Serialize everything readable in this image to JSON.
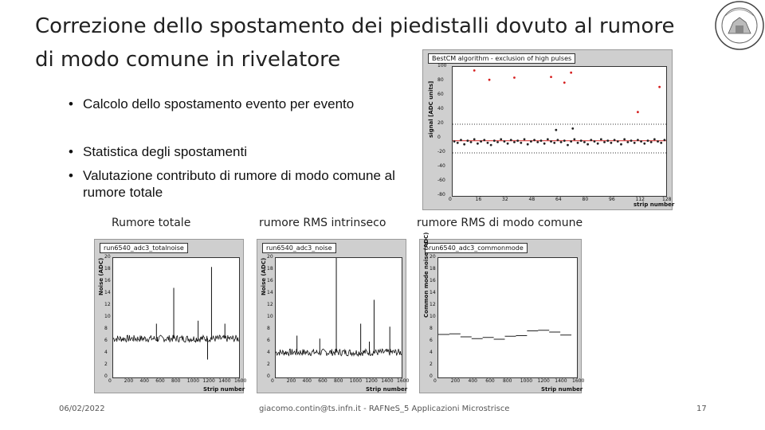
{
  "slide": {
    "title": "Correzione dello spostamento dei piedistalli dovuto al rumore di modo comune in rivelatore",
    "bullets": [
      "Calcolo dello spostamento evento per evento",
      "Statistica degli spostamenti",
      "Valutazione contributo di rumore di modo comune al rumore totale"
    ],
    "bullet_glyph": "•",
    "plot_labels": [
      "Rumore totale",
      "rumore RMS intrinseco",
      "rumore RMS di modo comune"
    ],
    "footer": {
      "date": "06/02/2022",
      "center": "giacomo.contin@ts.infn.it - RAFNeS_5 Applicazioni Microstrisce",
      "page": "17"
    },
    "logo_icon": "university-seal-icon"
  },
  "chart_data": [
    {
      "type": "scatter",
      "title": "BestCM algorithm - exclusion of high pulses",
      "xlabel": "strip number",
      "ylabel": "signal [ADC units]",
      "xlim": [
        0,
        128
      ],
      "ylim": [
        -80,
        100
      ],
      "xticks": [
        0,
        16,
        32,
        48,
        64,
        80,
        96,
        112,
        128
      ],
      "yticks": [
        -80,
        -60,
        -40,
        -20,
        0,
        20,
        40,
        60,
        80,
        100
      ],
      "grid": false,
      "thresholds": [
        20,
        -20
      ],
      "series": [
        {
          "color": "#222222",
          "x": [
            1,
            3,
            5,
            7,
            9,
            11,
            13,
            15,
            17,
            19,
            21,
            23,
            25,
            27,
            29,
            31,
            33,
            35,
            37,
            39,
            41,
            43,
            45,
            47,
            49,
            51,
            53,
            55,
            57,
            59,
            61,
            63,
            65,
            67,
            69,
            71,
            73,
            75,
            77,
            79,
            81,
            83,
            85,
            87,
            89,
            91,
            93,
            95,
            97,
            99,
            101,
            103,
            105,
            107,
            109,
            111,
            113,
            115,
            117,
            119,
            121,
            123,
            125,
            127
          ],
          "values": [
            -4,
            -6,
            -2,
            -8,
            -3,
            -5,
            -1,
            -7,
            -4,
            -2,
            -6,
            -9,
            -3,
            -5,
            -1,
            -4,
            -7,
            -2,
            -5,
            -3,
            -6,
            -1,
            -8,
            -4,
            -2,
            -5,
            -3,
            -7,
            -1,
            -4,
            -6,
            -2,
            -5,
            -3,
            -9,
            -4,
            -1,
            -6,
            -3,
            -5,
            -8,
            -2,
            -4,
            -7,
            -1,
            -5,
            -3,
            -6,
            -2,
            -4,
            -8,
            -1,
            -5,
            -3,
            -6,
            -2,
            -4,
            -7,
            -3,
            -5,
            -1,
            -4,
            -6,
            -2
          ]
        },
        {
          "color": "#222222",
          "x": [
            62,
            72
          ],
          "values": [
            12,
            14
          ]
        },
        {
          "color": "#d62020",
          "x": [
            13,
            22,
            37,
            59,
            67,
            71,
            111,
            124
          ],
          "values": [
            95,
            82,
            85,
            86,
            78,
            92,
            37,
            72
          ]
        }
      ],
      "baseline": {
        "color": "#d62020",
        "value": -3
      }
    },
    {
      "type": "line",
      "title": "run6540_adc3_totalnoise",
      "xlabel": "Strip number",
      "ylabel": "Noise (ADC)",
      "xlim": [
        0,
        1600
      ],
      "ylim": [
        0,
        20
      ],
      "xticks": [
        0,
        200,
        400,
        600,
        800,
        1000,
        1200,
        1400,
        1600
      ],
      "yticks": [
        0,
        2,
        4,
        6,
        8,
        10,
        12,
        14,
        16,
        18,
        20
      ],
      "baseline": 6.5,
      "spikes": [
        {
          "x": 550,
          "value": 9
        },
        {
          "x": 560,
          "value": 6
        },
        {
          "x": 770,
          "value": 15
        },
        {
          "x": 1080,
          "value": 9.5
        },
        {
          "x": 1200,
          "value": 3
        },
        {
          "x": 1250,
          "value": 18.5
        },
        {
          "x": 1420,
          "value": 9
        }
      ]
    },
    {
      "type": "line",
      "title": "run6540_adc3_noise",
      "xlabel": "Strip number",
      "ylabel": "Noise (ADC)",
      "xlim": [
        0,
        1600
      ],
      "ylim": [
        0,
        20
      ],
      "xticks": [
        0,
        200,
        400,
        600,
        800,
        1000,
        1200,
        1400,
        1600
      ],
      "yticks": [
        0,
        2,
        4,
        6,
        8,
        10,
        12,
        14,
        16,
        18,
        20
      ],
      "baseline": 4.2,
      "spikes": [
        {
          "x": 270,
          "value": 7
        },
        {
          "x": 560,
          "value": 6.5
        },
        {
          "x": 770,
          "value": 20
        },
        {
          "x": 1080,
          "value": 9
        },
        {
          "x": 1190,
          "value": 6
        },
        {
          "x": 1250,
          "value": 13
        },
        {
          "x": 1450,
          "value": 8.5
        }
      ]
    },
    {
      "type": "line",
      "title": "run6540_adc3_commonmode",
      "xlabel": "Strip number",
      "ylabel": "Common mode noise (ADC)",
      "xlim": [
        0,
        1600
      ],
      "ylim": [
        0,
        20
      ],
      "xticks": [
        0,
        200,
        400,
        600,
        800,
        1000,
        1200,
        1400,
        1600
      ],
      "yticks": [
        0,
        2,
        4,
        6,
        8,
        10,
        12,
        14,
        16,
        18,
        20
      ],
      "steps": [
        {
          "x0": 0,
          "x1": 128,
          "value": 7.2
        },
        {
          "x0": 128,
          "x1": 256,
          "value": 7.3
        },
        {
          "x0": 256,
          "x1": 384,
          "value": 6.8
        },
        {
          "x0": 384,
          "x1": 512,
          "value": 6.5
        },
        {
          "x0": 512,
          "x1": 640,
          "value": 6.7
        },
        {
          "x0": 640,
          "x1": 768,
          "value": 6.4
        },
        {
          "x0": 768,
          "x1": 896,
          "value": 6.9
        },
        {
          "x0": 896,
          "x1": 1024,
          "value": 7.0
        },
        {
          "x0": 1024,
          "x1": 1152,
          "value": 7.8
        },
        {
          "x0": 1152,
          "x1": 1280,
          "value": 7.9
        },
        {
          "x0": 1280,
          "x1": 1408,
          "value": 7.6
        },
        {
          "x0": 1408,
          "x1": 1536,
          "value": 7.1
        }
      ]
    }
  ]
}
